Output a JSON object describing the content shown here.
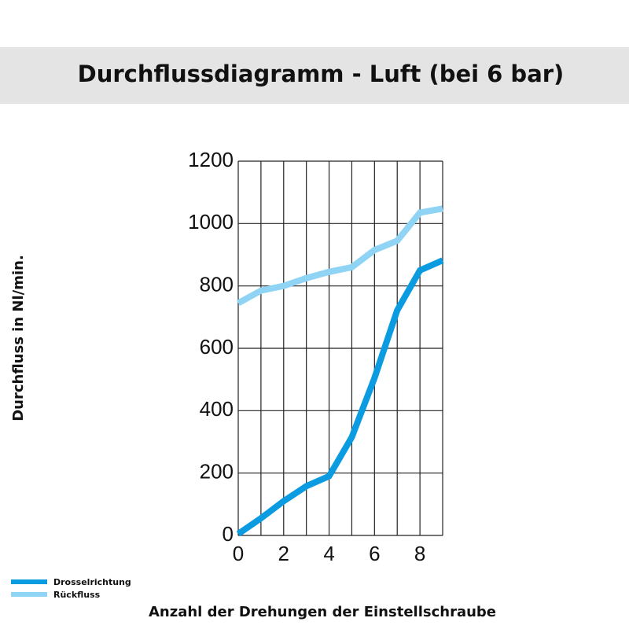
{
  "chart_data": {
    "type": "line",
    "title": "Durchflussdiagramm - Luft (bei 6 bar)",
    "x_label": "Anzahl der Drehungen der Einstellschraube",
    "y_label": "Durchfluss in Nl/min.",
    "x": [
      0,
      1,
      2,
      3,
      4,
      5,
      6,
      7,
      8,
      9
    ],
    "series": [
      {
        "name": "Drosselrichtung",
        "color": "#0a9be0",
        "values": [
          5,
          55,
          110,
          158,
          190,
          315,
          505,
          722,
          850,
          882
        ]
      },
      {
        "name": "Rückfluss",
        "color": "#8fd4f4",
        "values": [
          745,
          785,
          800,
          825,
          845,
          860,
          915,
          945,
          1035,
          1048
        ]
      }
    ],
    "xlim": [
      0,
      9
    ],
    "xticks": [
      0,
      2,
      4,
      6,
      8
    ],
    "x_minor_ticks": [
      1,
      3,
      5,
      7,
      9
    ],
    "ylim": [
      0,
      1200
    ],
    "yticks": [
      0,
      200,
      400,
      600,
      800,
      1000,
      1200
    ],
    "grid": true,
    "legend": "bottom-left"
  }
}
